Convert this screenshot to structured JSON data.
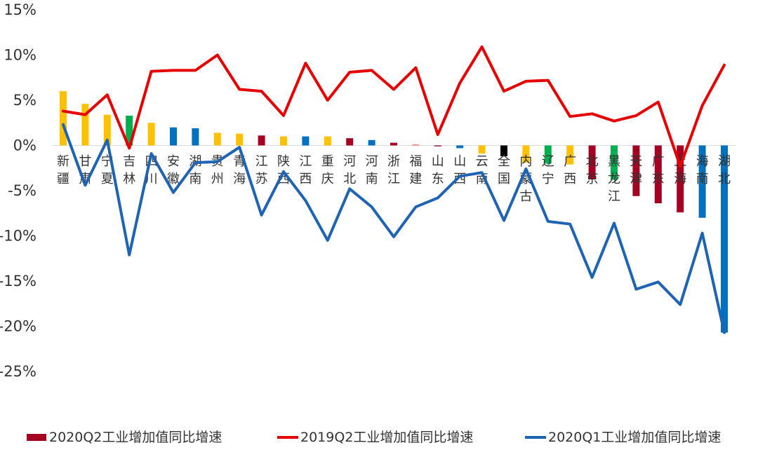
{
  "chart_data": {
    "type": "bar+line",
    "categories": [
      "新疆",
      "甘肃",
      "宁夏",
      "吉林",
      "四川",
      "安徽",
      "湖南",
      "贵州",
      "青海",
      "江苏",
      "陕西",
      "江西",
      "重庆",
      "河北",
      "河南",
      "浙江",
      "福建",
      "山东",
      "山西",
      "云南",
      "全国",
      "内蒙古",
      "辽宁",
      "广西",
      "北京",
      "黑龙江",
      "天津",
      "广东",
      "上海",
      "海南",
      "湖北"
    ],
    "series": [
      {
        "name": "2020Q2工业增加值同比增速",
        "type": "bar",
        "values": [
          6.0,
          4.6,
          3.4,
          3.3,
          2.5,
          2.0,
          1.9,
          1.4,
          1.3,
          1.1,
          1.0,
          1.0,
          1.0,
          0.8,
          0.6,
          0.3,
          0.1,
          -0.1,
          -0.3,
          -0.9,
          -1.2,
          -1.9,
          -2.0,
          -2.1,
          -3.7,
          -3.8,
          -5.6,
          -6.4,
          -7.4,
          -8.0,
          -20.7
        ]
      },
      {
        "name": "2019Q2工业增加值同比增速",
        "type": "line",
        "values": [
          3.8,
          3.4,
          5.6,
          -0.3,
          8.2,
          8.3,
          8.3,
          10.0,
          6.2,
          6.0,
          3.3,
          9.1,
          5.0,
          8.1,
          8.3,
          6.2,
          8.6,
          1.2,
          6.9,
          10.9,
          6.0,
          7.1,
          7.2,
          3.2,
          3.5,
          2.7,
          3.3,
          4.8,
          -2.3,
          4.4,
          8.9
        ]
      },
      {
        "name": "2020Q1工业增加值同比增速",
        "type": "line",
        "values": [
          2.3,
          -4.4,
          0.6,
          -12.1,
          -0.9,
          -5.2,
          -1.9,
          -1.8,
          -0.2,
          -7.7,
          -2.9,
          -6.1,
          -10.5,
          -4.8,
          -6.8,
          -10.1,
          -6.8,
          -5.8,
          -3.4,
          -3.0,
          -8.3,
          -2.6,
          -8.4,
          -8.7,
          -14.6,
          -8.6,
          -15.9,
          -15.1,
          -17.6,
          -9.7,
          -20.7
        ]
      }
    ],
    "bar_colors": [
      "#FFC000",
      "#FFC000",
      "#FFC000",
      "#00B050",
      "#FFC000",
      "#0070C0",
      "#0070C0",
      "#FFC000",
      "#FFC000",
      "#A50021",
      "#FFC000",
      "#0070C0",
      "#FFC000",
      "#A50021",
      "#0070C0",
      "#A50021",
      "#FF6666",
      "#A50021",
      "#0070C0",
      "#FFC000",
      "#000000",
      "#FFC000",
      "#00B050",
      "#FFC000",
      "#A50021",
      "#00B050",
      "#A50021",
      "#A50021",
      "#A50021",
      "#0070C0",
      "#0070C0"
    ],
    "line_colors": [
      "#E60000",
      "#1F64B4"
    ],
    "legend_swatch_color": "#A50021",
    "y_ticks": [
      "15%",
      "10%",
      "5%",
      "0%",
      "-5%",
      "-10%",
      "-15%",
      "-20%",
      "-25%"
    ],
    "ylim": [
      -25,
      15
    ],
    "grid": false,
    "legend_position": "bottom"
  }
}
